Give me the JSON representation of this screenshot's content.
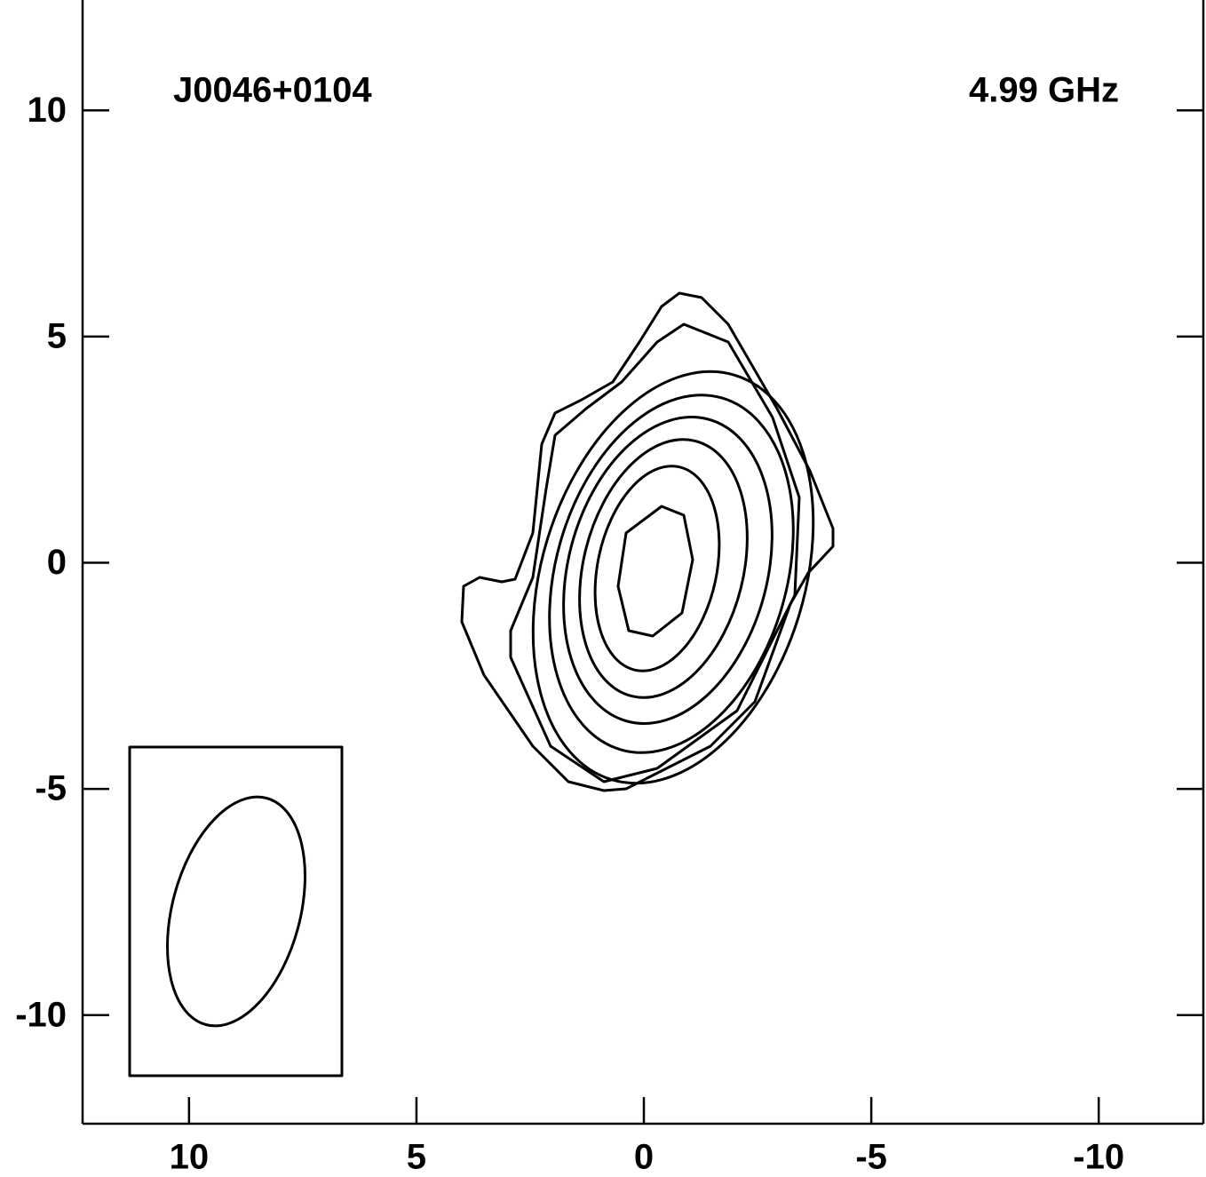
{
  "chart_data": {
    "type": "contour",
    "labels": [
      "J0046+0104",
      "4.99 GHz"
    ],
    "xlim": [
      12.34,
      -12.3
    ],
    "xticks": [
      10,
      5,
      0,
      -5,
      -10
    ],
    "ylim": [
      -12.4,
      12.4
    ],
    "yticks": [
      10,
      5,
      0,
      -5,
      -10
    ]
  }
}
